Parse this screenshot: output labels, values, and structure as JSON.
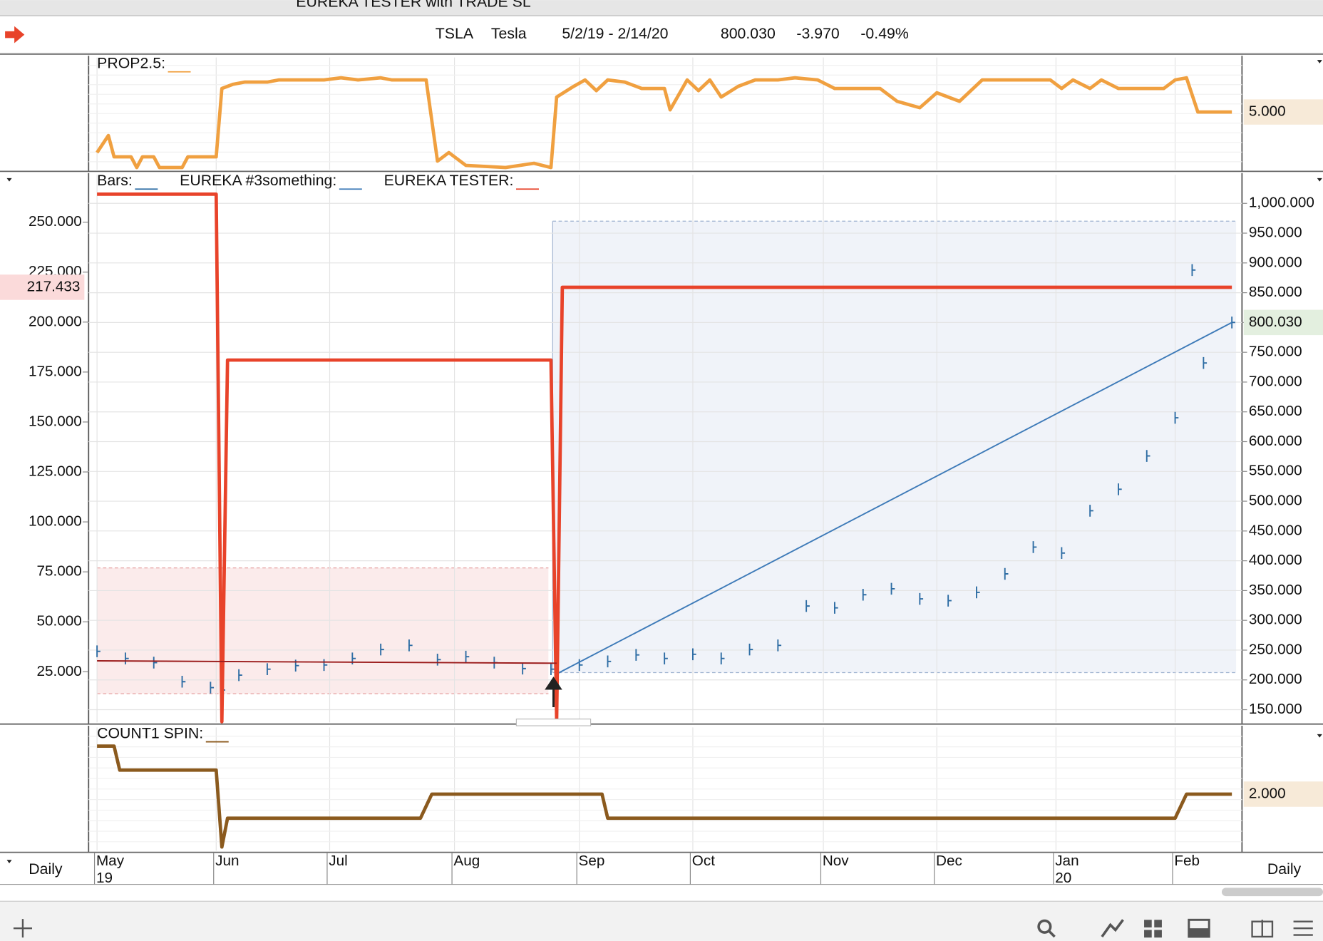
{
  "window": {
    "title": "EUREKA TESTER with TRADE SL"
  },
  "header": {
    "symbol": "TSLA",
    "name": "Tesla",
    "range": "5/2/19 - 2/14/20",
    "last": "800.030",
    "change": "-3.970",
    "change_pct": "-0.49%"
  },
  "time_axis": {
    "xlim": [
      0,
      200
    ],
    "xticks": [
      {
        "value": 0,
        "label": "May"
      },
      {
        "value": 21,
        "label": "Jun"
      },
      {
        "value": 41,
        "label": "Jul"
      },
      {
        "value": 63,
        "label": "Aug"
      },
      {
        "value": 85,
        "label": "Sep"
      },
      {
        "value": 105,
        "label": "Oct"
      },
      {
        "value": 128,
        "label": "Nov"
      },
      {
        "value": 148,
        "label": "Dec"
      },
      {
        "value": 169,
        "label": "Jan"
      },
      {
        "value": 190,
        "label": "Feb"
      }
    ],
    "years": [
      {
        "value": 0,
        "label": "19"
      },
      {
        "value": 169,
        "label": "20"
      }
    ],
    "interval_left": "Daily",
    "interval_right": "Daily"
  },
  "chart_data": [
    {
      "type": "line",
      "ylim": [
        2.3,
        7
      ],
      "series": [
        {
          "name": "PROP2.5:",
          "color": "#f0a040",
          "x": [
            0,
            2,
            3,
            6,
            7,
            8,
            10,
            11,
            15,
            16,
            21,
            22,
            24,
            26,
            30,
            32,
            36,
            40,
            43,
            46,
            50,
            52,
            58,
            60,
            62,
            65,
            72,
            77,
            80,
            81,
            84,
            86,
            88,
            90,
            93,
            96,
            100,
            101,
            104,
            106,
            108,
            110,
            113,
            116,
            120,
            123,
            127,
            130,
            138,
            141,
            145,
            148,
            152,
            156,
            160,
            168,
            170,
            172,
            175,
            177,
            180,
            188,
            190,
            192,
            194,
            200
          ],
          "values": [
            3.1,
            3.9,
            2.9,
            2.9,
            2.4,
            2.9,
            2.9,
            2.4,
            2.4,
            2.9,
            2.9,
            6.1,
            6.3,
            6.4,
            6.4,
            6.5,
            6.5,
            6.5,
            6.6,
            6.5,
            6.6,
            6.5,
            6.5,
            2.7,
            3.1,
            2.5,
            2.4,
            2.6,
            2.4,
            5.7,
            6.2,
            6.5,
            6.0,
            6.5,
            6.4,
            6.1,
            6.1,
            5.1,
            6.5,
            6.0,
            6.5,
            5.7,
            6.2,
            6.5,
            6.5,
            6.6,
            6.5,
            6.1,
            6.1,
            5.5,
            5.2,
            5.9,
            5.5,
            6.5,
            6.5,
            6.5,
            6.1,
            6.5,
            6.1,
            6.5,
            6.1,
            6.1,
            6.5,
            6.6,
            5.0,
            5.0
          ]
        }
      ],
      "badge": {
        "value": 5,
        "label": "5.000",
        "side": "right"
      }
    },
    {
      "type": "line",
      "ylim": [
        0,
        265
      ],
      "y2lim": [
        127,
        1018
      ],
      "grid": true,
      "yticks": [
        {
          "value": 25,
          "label": "25.000"
        },
        {
          "value": 50,
          "label": "50.000"
        },
        {
          "value": 75,
          "label": "75.000"
        },
        {
          "value": 100,
          "label": "100.000"
        },
        {
          "value": 125,
          "label": "125.000"
        },
        {
          "value": 150,
          "label": "150.000"
        },
        {
          "value": 175,
          "label": "175.000"
        },
        {
          "value": 200,
          "label": "200.000"
        },
        {
          "value": 225,
          "label": "225.000"
        },
        {
          "value": 250,
          "label": "250.000"
        }
      ],
      "y2ticks": [
        {
          "value": 150,
          "label": "150.000"
        },
        {
          "value": 200,
          "label": "200.000"
        },
        {
          "value": 250,
          "label": "250.000"
        },
        {
          "value": 300,
          "label": "300.000"
        },
        {
          "value": 350,
          "label": "350.000"
        },
        {
          "value": 400,
          "label": "400.000"
        },
        {
          "value": 450,
          "label": "450.000"
        },
        {
          "value": 500,
          "label": "500.000"
        },
        {
          "value": 550,
          "label": "550.000"
        },
        {
          "value": 600,
          "label": "600.000"
        },
        {
          "value": 650,
          "label": "650.000"
        },
        {
          "value": 700,
          "label": "700.000"
        },
        {
          "value": 750,
          "label": "750.000"
        },
        {
          "value": 800,
          "label": "800.000"
        },
        {
          "value": 850,
          "label": "850.000"
        },
        {
          "value": 900,
          "label": "900.000"
        },
        {
          "value": 950,
          "label": "950.000"
        },
        {
          "value": 1000,
          "label": "1,000.000"
        }
      ],
      "series": [
        {
          "name": "Bars:",
          "color": "#2e6da4",
          "style": "bars",
          "axis": "y2",
          "x": [
            0,
            5,
            10,
            15,
            20,
            22,
            25,
            30,
            35,
            40,
            45,
            50,
            55,
            60,
            65,
            70,
            75,
            80,
            85,
            90,
            95,
            100,
            105,
            110,
            115,
            120,
            125,
            130,
            135,
            140,
            145,
            150,
            155,
            160,
            165,
            170,
            175,
            180,
            185,
            190,
            193,
            195,
            200
          ],
          "values": [
            248,
            236,
            229,
            197,
            187,
            183,
            208,
            218,
            224,
            225,
            236,
            251,
            258,
            234,
            239,
            229,
            219,
            218,
            225,
            231,
            242,
            236,
            243,
            236,
            251,
            258,
            324,
            321,
            343,
            353,
            336,
            333,
            347,
            378,
            423,
            413,
            484,
            520,
            576,
            640,
            888,
            732,
            800.03
          ]
        },
        {
          "name": "EUREKA #3something:",
          "color": "#3d7ab8",
          "axis": "y2",
          "x": [
            81,
            200
          ],
          "values": [
            210,
            800
          ]
        },
        {
          "name": "EUREKA TESTER:",
          "color": "#e8432a",
          "x": [
            0,
            21,
            22,
            23,
            80,
            81,
            82,
            200
          ],
          "values": [
            264,
            264,
            0,
            181,
            181,
            0,
            217.433,
            217.433
          ]
        },
        {
          "color": "#9b1c1c",
          "axis": "y2",
          "x": [
            0,
            81
          ],
          "values": [
            232,
            228
          ]
        }
      ],
      "badges": [
        {
          "value": 217.433,
          "label": "217.433",
          "axis": "y",
          "side": "left"
        },
        {
          "value": 800.03,
          "label": "800.030",
          "axis": "y2",
          "side": "right"
        }
      ]
    },
    {
      "type": "line",
      "ylim": [
        0.8,
        3.3
      ],
      "series": [
        {
          "name": "COUNT1 SPIN:",
          "color": "#8b5a1e",
          "x": [
            0,
            3,
            4,
            21,
            22,
            23,
            57,
            59,
            89,
            90,
            190,
            192,
            200
          ],
          "values": [
            3,
            3,
            2.5,
            2.5,
            0.9,
            1.5,
            1.5,
            2,
            2,
            1.5,
            1.5,
            2,
            2
          ]
        }
      ],
      "badge": {
        "value": 2,
        "label": "2.000",
        "side": "right"
      }
    }
  ]
}
